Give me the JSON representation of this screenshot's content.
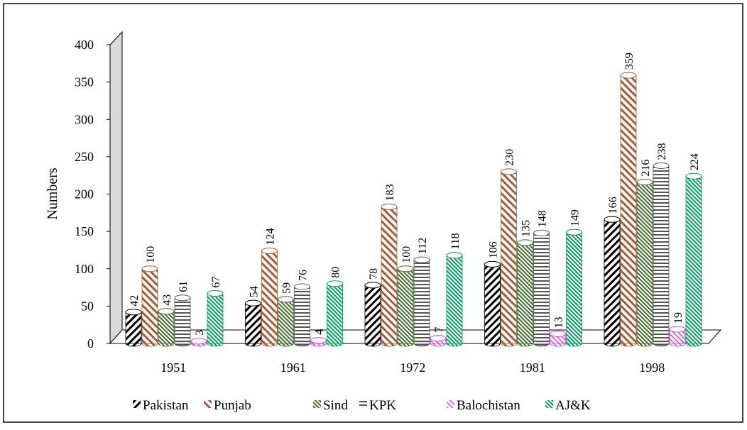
{
  "chart_data": {
    "type": "bar",
    "y_label": "Numbers",
    "categories": [
      "1951",
      "1961",
      "1972",
      "1981",
      "1998"
    ],
    "series": [
      {
        "name": "Pakistan",
        "color": "#000000",
        "values": [
          42,
          54,
          78,
          106,
          166
        ]
      },
      {
        "name": "Punjab",
        "color": "#a85a32",
        "values": [
          100,
          124,
          183,
          230,
          359
        ]
      },
      {
        "name": "Sind",
        "color": "#3f6e2e",
        "values": [
          43,
          59,
          100,
          135,
          216
        ]
      },
      {
        "name": "KPK",
        "color": "#555555",
        "values": [
          61,
          76,
          112,
          148,
          238
        ]
      },
      {
        "name": "Balochistan",
        "color": "#e040e0",
        "values": [
          3,
          4,
          7,
          13,
          19
        ]
      },
      {
        "name": "AJ&K",
        "color": "#00a060",
        "values": [
          67,
          80,
          118,
          149,
          224
        ]
      }
    ],
    "ylim": [
      0,
      400
    ],
    "yticks": [
      0,
      50,
      100,
      150,
      200,
      250,
      300,
      350,
      400
    ],
    "grid": false,
    "legend": "bottom"
  }
}
